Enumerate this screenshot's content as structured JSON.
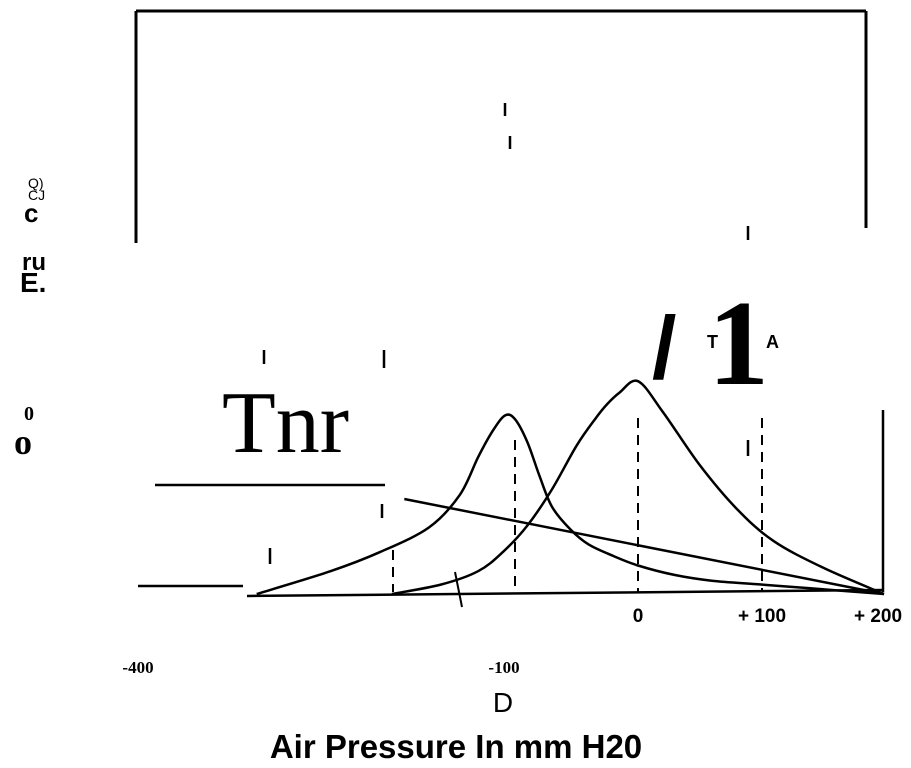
{
  "chart_data": {
    "type": "line",
    "title": "",
    "xlabel": "Air Pressure In mm H20",
    "ylabel_fragments": [
      "Q)",
      "CJ",
      "c",
      "ru",
      "E.",
      "0",
      "o"
    ],
    "scan_artifacts": [
      "Tnr",
      "/",
      "1",
      "T",
      "A",
      "D"
    ],
    "x_ticks_right": [
      "0",
      "+ 100",
      "+ 200"
    ],
    "x_ticks_left": [
      "-400",
      "-100"
    ],
    "xlim": [
      -400,
      200
    ],
    "series": [
      {
        "x": [
          -310,
          -250,
          -210,
          -170,
          -145,
          -130,
          -118,
          -108,
          -100,
          -90,
          -80,
          -70,
          -55,
          -40,
          -20,
          0,
          30,
          60,
          100,
          140,
          200
        ],
        "y": [
          0.0,
          0.12,
          0.22,
          0.35,
          0.52,
          0.72,
          0.86,
          0.94,
          0.92,
          0.8,
          0.62,
          0.46,
          0.34,
          0.26,
          0.2,
          0.15,
          0.1,
          0.07,
          0.05,
          0.03,
          0.0
        ]
      },
      {
        "x": [
          -200,
          -160,
          -130,
          -110,
          -90,
          -70,
          -50,
          -35,
          -25,
          -15,
          0,
          20,
          50,
          80,
          110,
          150,
          200
        ],
        "y": [
          0.0,
          0.05,
          0.12,
          0.22,
          0.36,
          0.55,
          0.78,
          0.92,
          1.0,
          1.06,
          1.12,
          0.96,
          0.68,
          0.45,
          0.28,
          0.14,
          0.0
        ]
      },
      {
        "x": [
          -190,
          200
        ],
        "y": [
          0.5,
          0.0
        ]
      }
    ]
  }
}
